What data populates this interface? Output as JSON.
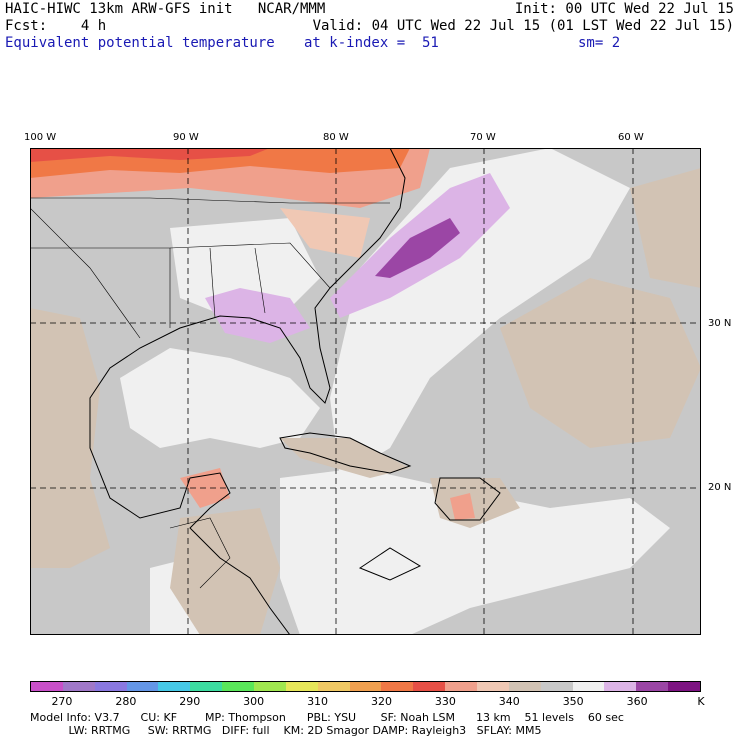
{
  "header": {
    "line1_left": "HAIC-HIWC 13km ARW-GFS init   NCAR/MMM",
    "line1_right": "Init: 00 UTC Wed 22 Jul 15",
    "line2_left": "Fcst:    4 h",
    "line2_right": "Valid: 04 UTC Wed 22 Jul 15 (01 LST Wed 22 Jul 15)",
    "line3_left": "Equivalent potential temperature",
    "line3_mid": "at k-index =  51",
    "line3_right": "sm= 2"
  },
  "map": {
    "lon_labels": [
      "100 W",
      "90 W",
      "80 W",
      "70 W",
      "60 W"
    ],
    "lat_labels": [
      "30 N",
      "20 N"
    ]
  },
  "colorbar": {
    "colors": [
      "#c850c8",
      "#a078c8",
      "#8a78e0",
      "#6496e6",
      "#46c8e6",
      "#3cdca0",
      "#5ae65a",
      "#a0e650",
      "#e6e65a",
      "#f0c864",
      "#f0a050",
      "#f07846",
      "#e65046",
      "#f0a08c",
      "#f0c8b4",
      "#d2c3b4",
      "#c8c8c8",
      "#f0f0f0",
      "#dcb4e6",
      "#9b46a5",
      "#7d1482"
    ],
    "labels": [
      "270",
      "280",
      "290",
      "300",
      "310",
      "320",
      "330",
      "340",
      "350",
      "360",
      "K"
    ]
  },
  "model_info": {
    "line1": "Model Info: V3.7      CU: KF        MP: Thompson      PBL: YSU       SF: Noah LSM      13 km    51 levels    60 sec",
    "line2": "           LW: RRTMG     SW: RRTMG   DIFF: full    KM: 2D Smagor DAMP: Rayleigh3   SFLAY: MM5"
  }
}
